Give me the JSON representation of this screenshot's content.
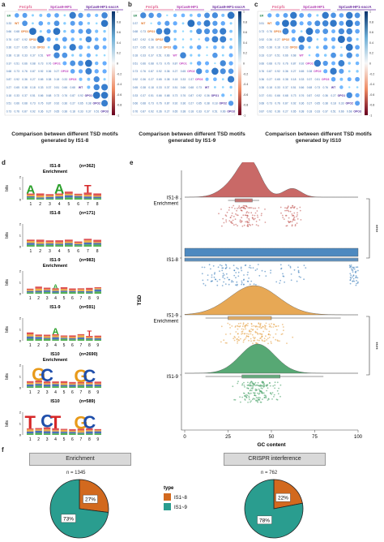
{
  "panels": {
    "a": "a",
    "b": "b",
    "c": "c",
    "d": "d",
    "e": "e",
    "f": "f"
  },
  "corr": {
    "captions": [
      "Comparison between different TSD motifs\ngenerated by IS1-8",
      "Comparison between different TSD motifs\ngenerated by IS1-9",
      "Comparison between different TSD motifs\ngenerated by IS10"
    ],
    "groups": [
      "FnCpf1",
      "SpCas9-HF1",
      "SpCas9-HF1-sscrA"
    ],
    "colorbar_ticks": [
      "1",
      "0.8",
      "0.6",
      "0.4",
      "0.2",
      "0",
      "-0.2",
      "-0.4",
      "-0.6",
      "-0.8",
      "-1"
    ],
    "row_labels": [
      "ER",
      "WT",
      "OPO1",
      "OPO2",
      "OPO3",
      "WT",
      "OPO1",
      "OPO2",
      "OPO3",
      "WT",
      "OPO1",
      "OPO2",
      "OPO3"
    ],
    "sample_values": [
      "0.65",
      "0.38",
      "0.18",
      "0.33",
      "0.37",
      "0.51",
      "0.66",
      "0.68",
      "0.73",
      "0.76",
      "0.87",
      "0.92",
      "0.36",
      "0.27"
    ]
  },
  "logos": [
    {
      "title": "IS1-8\nEnrichment",
      "n": "(n=362)",
      "ticks": [
        "1",
        "2",
        "3",
        "4",
        "5",
        "6",
        "7",
        "8"
      ]
    },
    {
      "title": "IS1-8",
      "n": "(n=171)",
      "ticks": [
        "1",
        "2",
        "3",
        "4",
        "5",
        "6",
        "7",
        "8"
      ]
    },
    {
      "title": "IS1-9\nEnrichment",
      "n": "(n=983)",
      "ticks": [
        "1",
        "2",
        "3",
        "4",
        "5",
        "6",
        "7",
        "8",
        "9"
      ]
    },
    {
      "title": "IS1-9",
      "n": "(n=591)",
      "ticks": [
        "1",
        "2",
        "3",
        "4",
        "5",
        "6",
        "7",
        "8",
        "9"
      ]
    },
    {
      "title": "IS10\nEnrichment",
      "n": "(n=2690)",
      "ticks": [
        "1",
        "2",
        "3",
        "4",
        "5",
        "6",
        "7",
        "8",
        "9"
      ]
    },
    {
      "title": "IS10",
      "n": "(n=589)",
      "ticks": [
        "1",
        "2",
        "3",
        "4",
        "5",
        "6",
        "7",
        "8",
        "9"
      ]
    }
  ],
  "logo_ylabel": "bits",
  "logo_yticks": [
    "2",
    "1",
    "0"
  ],
  "raincloud": {
    "ylabel": "TSD",
    "xlabel": "GC content",
    "xticks": [
      "0",
      "25",
      "50",
      "75",
      "100"
    ],
    "sig": "****",
    "groups": [
      {
        "label": "IS1-8\nEnrichment",
        "color": "#c0504d"
      },
      {
        "label": "IS1-8",
        "color": "#2e75b6"
      },
      {
        "label": "IS1-9\nEnrichment",
        "color": "#e39a38"
      },
      {
        "label": "IS1-9",
        "color": "#3a9a5c"
      }
    ]
  },
  "chart_data": [
    {
      "type": "pie",
      "title": "Enrichment",
      "total_label": "n = 1345",
      "categories": [
        "IS1~8",
        "IS1~9"
      ],
      "values": [
        27,
        73
      ],
      "labels": [
        "27%",
        "73%"
      ],
      "colors": [
        "#d2691e",
        "#2a9d8f"
      ]
    },
    {
      "type": "pie",
      "title": "CRISPR interference",
      "total_label": "n = 762",
      "categories": [
        "IS1~8",
        "IS1~9"
      ],
      "values": [
        22,
        78
      ],
      "labels": [
        "22%",
        "78%"
      ],
      "colors": [
        "#d2691e",
        "#2a9d8f"
      ]
    }
  ],
  "legend": {
    "title": "type",
    "items": [
      {
        "label": "IS1~8",
        "color": "#d2691e"
      },
      {
        "label": "IS1~9",
        "color": "#2a9d8f"
      }
    ]
  }
}
